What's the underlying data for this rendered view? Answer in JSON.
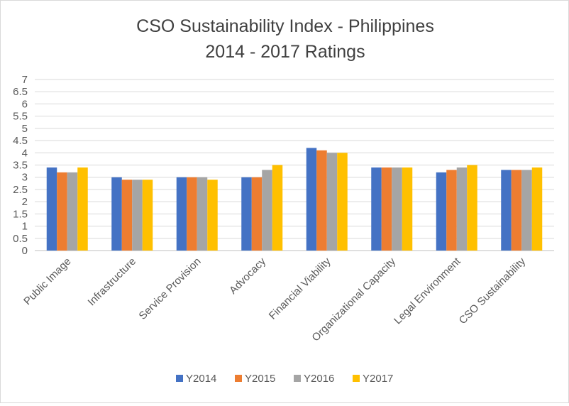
{
  "chart_data": {
    "type": "bar",
    "title": "CSO Sustainability Index - Philippines",
    "subtitle": "2014 - 2017 Ratings",
    "xlabel": "",
    "ylabel": "",
    "ylim": [
      0,
      7
    ],
    "ytick_step": 0.5,
    "yticks": [
      "0",
      "0.5",
      "1",
      "1.5",
      "2",
      "2.5",
      "3",
      "3.5",
      "4",
      "4.5",
      "5",
      "5.5",
      "6",
      "6.5",
      "7"
    ],
    "grid": true,
    "legend_position": "bottom",
    "categories": [
      "Public Image",
      "Infrastructure",
      "Service Provision",
      "Advocacy",
      "Financial Viability",
      "Organizational Capacity",
      "Legal Environment",
      "CSO Sustainability"
    ],
    "series": [
      {
        "name": "Y2014",
        "color": "#4472c4",
        "values": [
          3.4,
          3.0,
          3.0,
          3.0,
          4.2,
          3.4,
          3.2,
          3.3
        ]
      },
      {
        "name": "Y2015",
        "color": "#ed7d31",
        "values": [
          3.2,
          2.9,
          3.0,
          3.0,
          4.1,
          3.4,
          3.3,
          3.3
        ]
      },
      {
        "name": "Y2016",
        "color": "#a5a5a5",
        "values": [
          3.2,
          2.9,
          3.0,
          3.3,
          4.0,
          3.4,
          3.4,
          3.3
        ]
      },
      {
        "name": "Y2017",
        "color": "#ffc000",
        "values": [
          3.4,
          2.9,
          2.9,
          3.5,
          4.0,
          3.4,
          3.5,
          3.4
        ]
      }
    ]
  }
}
